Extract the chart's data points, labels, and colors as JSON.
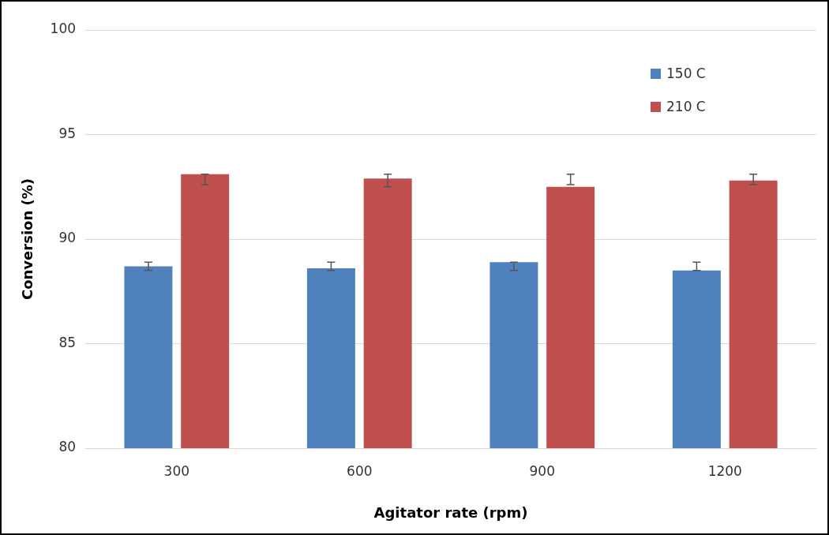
{
  "chart_data": {
    "type": "bar",
    "xlabel": "Agitator rate (rpm)",
    "ylabel": "Conversion (%)",
    "categories": [
      "300",
      "600",
      "900",
      "1200"
    ],
    "series": [
      {
        "name": "150 C",
        "color": "#4f81bd",
        "values": [
          88.7,
          88.6,
          88.9,
          88.5
        ],
        "errors": [
          [
            88.5,
            88.9
          ],
          [
            88.5,
            88.9
          ],
          [
            88.5,
            88.9
          ],
          [
            88.5,
            88.9
          ]
        ]
      },
      {
        "name": "210 C",
        "color": "#c0504d",
        "values": [
          93.1,
          92.9,
          92.5,
          92.8
        ],
        "errors": [
          [
            92.6,
            93.1
          ],
          [
            92.5,
            93.1
          ],
          [
            92.6,
            93.1
          ],
          [
            92.6,
            93.1
          ]
        ]
      }
    ],
    "ylim": [
      80,
      100
    ],
    "yticks": [
      80,
      85,
      90,
      95,
      100
    ],
    "grid": "y",
    "legend": "top right"
  }
}
